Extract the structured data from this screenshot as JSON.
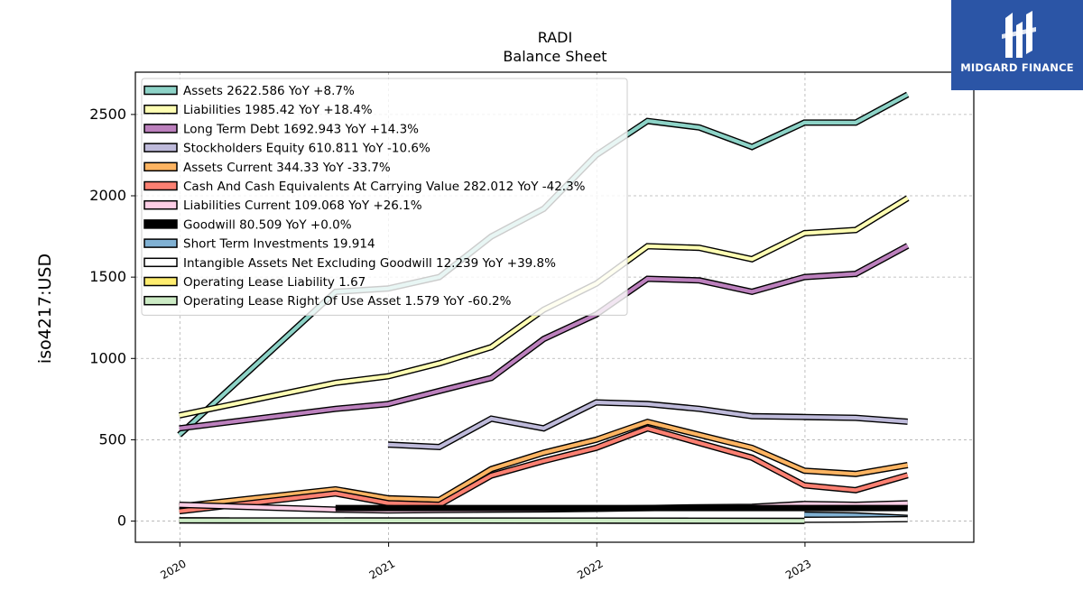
{
  "chart_data": {
    "type": "line",
    "title": "RADI",
    "subtitle": "Balance  Sheet",
    "ylabel": "iso4217:USD",
    "xlim": [
      "2019-10-15",
      "2023-10-24"
    ],
    "ylim": [
      -130,
      2760
    ],
    "yticks": [
      0,
      500,
      1000,
      1500,
      2000,
      2500
    ],
    "xticks": [
      {
        "date": "2020-01-01",
        "label": "2020"
      },
      {
        "date": "2021-01-01",
        "label": "2021"
      },
      {
        "date": "2022-01-01",
        "label": "2022"
      },
      {
        "date": "2023-01-01",
        "label": "2023"
      }
    ],
    "grid": true,
    "legend_position": "top-left",
    "series": [
      {
        "name": "Assets  2622.586 YoY +8.7%",
        "color": "#8dd3c7",
        "points": [
          [
            "2019-12-31",
            530
          ],
          [
            "2020-09-30",
            1410
          ],
          [
            "2020-12-31",
            1430
          ],
          [
            "2021-03-31",
            1500
          ],
          [
            "2021-06-30",
            1750
          ],
          [
            "2021-09-30",
            1920
          ],
          [
            "2021-12-31",
            2250
          ],
          [
            "2022-03-31",
            2460
          ],
          [
            "2022-06-30",
            2420
          ],
          [
            "2022-09-30",
            2300
          ],
          [
            "2022-12-31",
            2450
          ],
          [
            "2023-03-31",
            2450
          ],
          [
            "2023-06-30",
            2622.586
          ]
        ]
      },
      {
        "name": "Liabilities  1985.42 YoY +18.4%",
        "color": "#ffffb3",
        "points": [
          [
            "2019-12-31",
            650
          ],
          [
            "2020-09-30",
            850
          ],
          [
            "2020-12-31",
            890
          ],
          [
            "2021-03-31",
            970
          ],
          [
            "2021-06-30",
            1070
          ],
          [
            "2021-09-30",
            1300
          ],
          [
            "2021-12-31",
            1460
          ],
          [
            "2022-03-31",
            1690
          ],
          [
            "2022-06-30",
            1680
          ],
          [
            "2022-09-30",
            1610
          ],
          [
            "2022-12-31",
            1770
          ],
          [
            "2023-03-31",
            1790
          ],
          [
            "2023-06-30",
            1985.42
          ]
        ]
      },
      {
        "name": "Long Term Debt  1692.943 YoY +14.3%",
        "color": "#bc80bd",
        "points": [
          [
            "2019-12-31",
            570
          ],
          [
            "2020-09-30",
            690
          ],
          [
            "2020-12-31",
            720
          ],
          [
            "2021-03-31",
            800
          ],
          [
            "2021-06-30",
            880
          ],
          [
            "2021-09-30",
            1120
          ],
          [
            "2021-12-31",
            1270
          ],
          [
            "2022-03-31",
            1490
          ],
          [
            "2022-06-30",
            1480
          ],
          [
            "2022-09-30",
            1410
          ],
          [
            "2022-12-31",
            1500
          ],
          [
            "2023-03-31",
            1520
          ],
          [
            "2023-06-30",
            1692.943
          ]
        ]
      },
      {
        "name": "Stockholders Equity  610.811 YoY -10.6%",
        "color": "#bebada",
        "points": [
          [
            "2020-12-31",
            470
          ],
          [
            "2021-03-31",
            455
          ],
          [
            "2021-06-30",
            630
          ],
          [
            "2021-09-30",
            570
          ],
          [
            "2021-12-31",
            730
          ],
          [
            "2022-03-31",
            720
          ],
          [
            "2022-06-30",
            690
          ],
          [
            "2022-09-30",
            645
          ],
          [
            "2022-12-31",
            640
          ],
          [
            "2023-03-31",
            635
          ],
          [
            "2023-06-30",
            610.811
          ]
        ]
      },
      {
        "name": "Assets Current  344.33 YoY -33.7%",
        "color": "#fdb462",
        "points": [
          [
            "2019-12-31",
            90
          ],
          [
            "2020-09-30",
            195
          ],
          [
            "2020-12-31",
            140
          ],
          [
            "2021-03-31",
            130
          ],
          [
            "2021-06-30",
            320
          ],
          [
            "2021-09-30",
            420
          ],
          [
            "2021-12-31",
            500
          ],
          [
            "2022-03-31",
            610
          ],
          [
            "2022-06-30",
            530
          ],
          [
            "2022-09-30",
            450
          ],
          [
            "2022-12-31",
            310
          ],
          [
            "2023-03-31",
            290
          ],
          [
            "2023-06-30",
            344.33
          ]
        ]
      },
      {
        "name": "Cash And Cash Equivalents At Carrying Value  282.012 YoY -42.3%",
        "color": "#fb8072",
        "points": [
          [
            "2019-12-31",
            60
          ],
          [
            "2020-09-30",
            170
          ],
          [
            "2020-12-31",
            110
          ],
          [
            "2021-03-31",
            100
          ],
          [
            "2021-06-30",
            280
          ],
          [
            "2021-09-30",
            370
          ],
          [
            "2021-12-31",
            450
          ],
          [
            "2022-03-31",
            570
          ],
          [
            "2022-06-30",
            480
          ],
          [
            "2022-09-30",
            390
          ],
          [
            "2022-12-31",
            220
          ],
          [
            "2023-03-31",
            190
          ],
          [
            "2023-06-30",
            282.012
          ]
        ]
      },
      {
        "name": "Liabilities Current  109.068 YoY +26.1%",
        "color": "#fccde5",
        "points": [
          [
            "2019-12-31",
            100
          ],
          [
            "2020-09-30",
            70
          ],
          [
            "2020-12-31",
            65
          ],
          [
            "2021-03-31",
            68
          ],
          [
            "2021-06-30",
            70
          ],
          [
            "2021-09-30",
            72
          ],
          [
            "2021-12-31",
            75
          ],
          [
            "2022-03-31",
            80
          ],
          [
            "2022-06-30",
            85
          ],
          [
            "2022-09-30",
            88
          ],
          [
            "2022-12-31",
            105
          ],
          [
            "2023-03-31",
            100
          ],
          [
            "2023-06-30",
            109.068
          ]
        ]
      },
      {
        "name": "Goodwill  80.509 YoY +0.0%",
        "color": "#000000",
        "points": [
          [
            "2020-09-30",
            80.509
          ],
          [
            "2020-12-31",
            80.509
          ],
          [
            "2021-03-31",
            80.509
          ],
          [
            "2021-06-30",
            80.509
          ],
          [
            "2021-09-30",
            80.509
          ],
          [
            "2021-12-31",
            80.509
          ],
          [
            "2022-03-31",
            80.509
          ],
          [
            "2022-06-30",
            80.509
          ],
          [
            "2022-09-30",
            80.509
          ],
          [
            "2022-12-31",
            80.509
          ],
          [
            "2023-03-31",
            80.509
          ],
          [
            "2023-06-30",
            80.509
          ]
        ]
      },
      {
        "name": "Short Term Investments  19.914",
        "color": "#80b1d3",
        "points": [
          [
            "2022-12-31",
            40
          ],
          [
            "2023-03-31",
            35
          ],
          [
            "2023-06-30",
            19.914
          ]
        ]
      },
      {
        "name": "Intangible Assets Net Excluding Goodwill  12.239 YoY +39.8%",
        "color": "#ffffff",
        "points": [
          [
            "2022-12-31",
            8
          ],
          [
            "2023-03-31",
            9
          ],
          [
            "2023-06-30",
            12.239
          ]
        ]
      },
      {
        "name": "Operating Lease Liability  1.67",
        "color": "#ffed6f",
        "points": [
          [
            "2019-12-31",
            4
          ],
          [
            "2022-12-31",
            1.67
          ]
        ]
      },
      {
        "name": "Operating Lease Right Of Use Asset  1.579 YoY -60.2%",
        "color": "#ccebc5",
        "points": [
          [
            "2019-12-31",
            4
          ],
          [
            "2021-12-31",
            3
          ],
          [
            "2022-12-31",
            1.579
          ]
        ]
      }
    ]
  },
  "logo": {
    "brand": "MIDGARD FINANCE"
  }
}
